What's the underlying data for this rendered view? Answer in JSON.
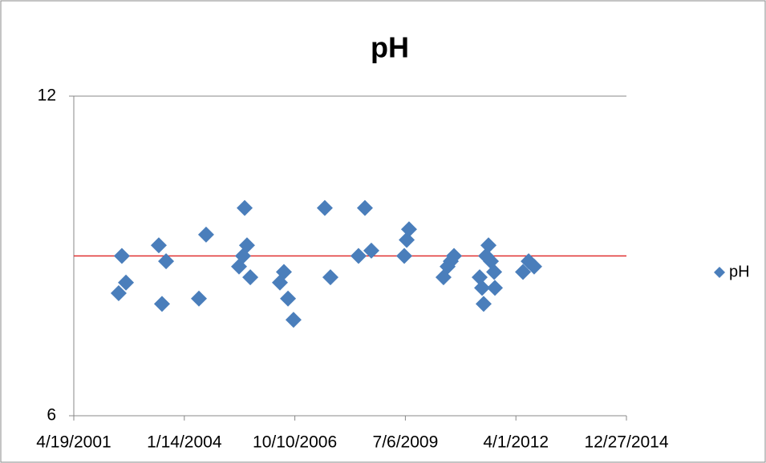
{
  "chart_data": {
    "type": "scatter",
    "title": "pH",
    "series": [
      {
        "name": "pH",
        "color": "#4a7ebb",
        "x": [
          37406,
          37435,
          37472,
          37769,
          37798,
          37835,
          38132,
          38197,
          38495,
          38531,
          38546,
          38567,
          38597,
          38865,
          38901,
          38938,
          38988,
          39271,
          39322,
          39576,
          39634,
          39692,
          39990,
          40012,
          40033,
          40345,
          40382,
          40411,
          40440,
          40672,
          40694,
          40708,
          40730,
          40752,
          40774,
          40803,
          40810,
          41064,
          41115,
          41165
        ],
        "values": [
          8.3,
          9.0,
          8.5,
          9.2,
          8.1,
          8.9,
          8.2,
          9.4,
          8.8,
          9.0,
          9.9,
          9.2,
          8.6,
          8.5,
          8.7,
          8.2,
          7.8,
          9.9,
          8.6,
          9.0,
          9.9,
          9.1,
          9.0,
          9.3,
          9.5,
          8.6,
          8.8,
          8.9,
          9.0,
          8.6,
          8.4,
          8.1,
          9.0,
          9.2,
          8.9,
          8.7,
          8.4,
          8.7,
          8.9,
          8.8
        ]
      }
    ],
    "reference_line": {
      "value": 9,
      "color": "#e03030"
    },
    "xlim": [
      37000,
      42000
    ],
    "xticks": [
      {
        "value": 37000,
        "label": "4/19/2001"
      },
      {
        "value": 38000,
        "label": "1/14/2004"
      },
      {
        "value": 39000,
        "label": "10/10/2006"
      },
      {
        "value": 40000,
        "label": "7/6/2009"
      },
      {
        "value": 41000,
        "label": "4/1/2012"
      },
      {
        "value": 42000,
        "label": "12/27/2014"
      }
    ],
    "ylim": [
      6,
      12
    ],
    "yticks": [
      6,
      12
    ],
    "grid": true,
    "legend": "right"
  }
}
